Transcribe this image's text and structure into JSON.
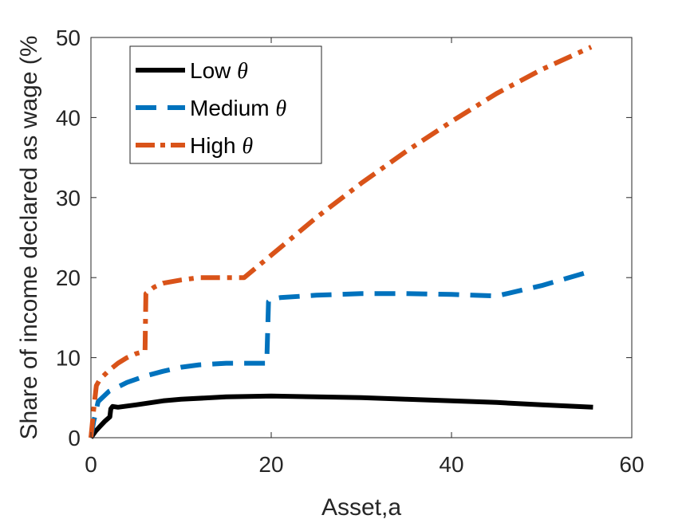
{
  "chart_data": {
    "type": "line",
    "xlabel": "Asset,a",
    "ylabel": "Share of income declared as wage (%",
    "xlim": [
      0,
      60
    ],
    "ylim": [
      0,
      50
    ],
    "xticks": [
      0,
      20,
      40,
      60
    ],
    "yticks": [
      0,
      10,
      20,
      30,
      40,
      50
    ],
    "grid": false,
    "legend_position": "top-left",
    "series": [
      {
        "name": "Low",
        "name_symbol": "θ",
        "color": "#000000",
        "style": "solid",
        "x": [
          0,
          0.5,
          1,
          1.5,
          2.1,
          2.2,
          2.4,
          3,
          5,
          8,
          10,
          15,
          20,
          25,
          30,
          35,
          40,
          45,
          50,
          55.7
        ],
        "y": [
          0,
          0.8,
          1.4,
          2.0,
          2.6,
          3.6,
          3.9,
          3.8,
          4.1,
          4.6,
          4.8,
          5.1,
          5.2,
          5.1,
          5.0,
          4.8,
          4.6,
          4.4,
          4.1,
          3.8
        ]
      },
      {
        "name": "Medium",
        "name_symbol": "θ",
        "color": "#0072BD",
        "style": "dashed",
        "x": [
          0,
          0.3,
          0.8,
          2,
          4,
          6,
          8,
          10,
          12,
          15,
          18,
          19.5,
          19.7,
          20,
          21,
          25,
          30,
          35,
          40,
          45,
          50,
          55.5
        ],
        "y": [
          0,
          2.0,
          4.5,
          5.8,
          6.9,
          7.7,
          8.3,
          8.8,
          9.1,
          9.3,
          9.3,
          9.3,
          17.0,
          17.3,
          17.5,
          17.8,
          18.0,
          18.0,
          17.9,
          17.7,
          19.0,
          20.8
        ]
      },
      {
        "name": "High",
        "name_symbol": "θ",
        "color": "#D95319",
        "style": "dashdot",
        "x": [
          0,
          0.3,
          0.6,
          1,
          2,
          3,
          4,
          5,
          6,
          6.1,
          7,
          8,
          10,
          12,
          15,
          17,
          20,
          25,
          30,
          35,
          40,
          45,
          50,
          55.5
        ],
        "y": [
          0,
          3.5,
          6.5,
          7.3,
          8.4,
          9.3,
          10.0,
          10.5,
          10.8,
          18.0,
          18.8,
          19.3,
          19.7,
          20.0,
          20.0,
          20.0,
          22.8,
          27.5,
          31.8,
          35.8,
          39.5,
          43.0,
          46.0,
          48.8
        ]
      }
    ]
  }
}
